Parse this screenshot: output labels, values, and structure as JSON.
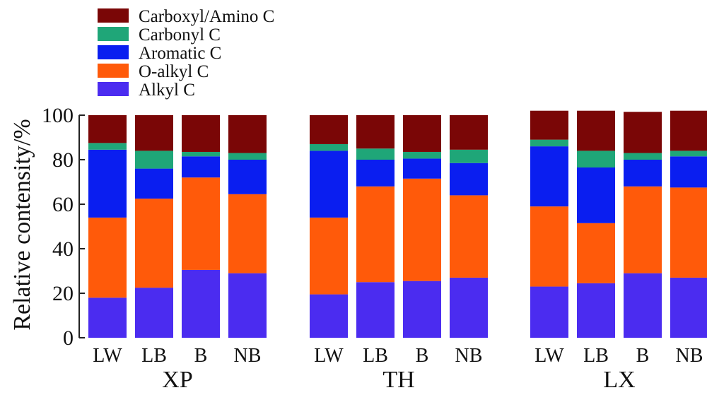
{
  "chart_data": {
    "type": "bar",
    "stacked": true,
    "title": "",
    "xlabel": "",
    "ylabel": "Relative contensity/%",
    "ylim": [
      0,
      100
    ],
    "yticks": [
      0,
      20,
      40,
      60,
      80,
      100
    ],
    "grid": false,
    "legend_position": "top-left",
    "groups": [
      {
        "name": "XP",
        "categories": [
          "LW",
          "LB",
          "B",
          "NB"
        ]
      },
      {
        "name": "TH",
        "categories": [
          "LW",
          "LB",
          "B",
          "NB"
        ]
      },
      {
        "name": "LX",
        "categories": [
          "LW",
          "LB",
          "B",
          "NB"
        ]
      }
    ],
    "series": [
      {
        "name": "Alkyl C",
        "color": "#4b2cf0",
        "values": [
          18,
          22.5,
          30.5,
          29,
          19.5,
          25,
          25.5,
          27,
          23,
          24.5,
          29,
          27
        ]
      },
      {
        "name": "O-alkyl C",
        "color": "#ff5a0a",
        "values": [
          36,
          40,
          41.5,
          35.5,
          34.5,
          43,
          46,
          37,
          36,
          27,
          39,
          40.5
        ]
      },
      {
        "name": "Aromatic C",
        "color": "#0a1ef0",
        "values": [
          30.5,
          13.5,
          9.5,
          15.5,
          30,
          12,
          9,
          14.5,
          27,
          25,
          12,
          14
        ]
      },
      {
        "name": "Carbonyl C",
        "color": "#1fa678",
        "values": [
          3,
          8,
          2,
          3,
          3,
          5,
          3,
          6,
          3,
          7.5,
          3,
          2.5
        ]
      },
      {
        "name": "Carboxyl/Amino C",
        "color": "#7a0606",
        "values": [
          12.5,
          16,
          16.5,
          17,
          13,
          15,
          16.5,
          15.5,
          13,
          18,
          18.5,
          18
        ]
      }
    ]
  }
}
